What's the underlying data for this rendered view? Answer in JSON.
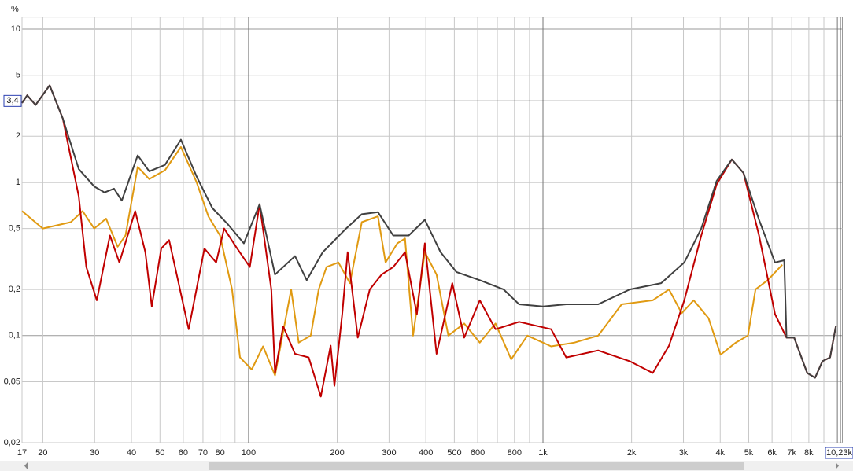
{
  "chart_data": {
    "type": "line",
    "y_label": "%",
    "xscale": "log",
    "yscale": "log",
    "grid": true,
    "xlim": [
      17,
      10400
    ],
    "ylim": [
      0.02,
      12
    ],
    "xticks": [
      17,
      20,
      30,
      40,
      50,
      60,
      70,
      80,
      100,
      200,
      300,
      400,
      500,
      600,
      800,
      {
        "value": 1000,
        "label": "1k"
      },
      {
        "value": 2000,
        "label": "2k"
      },
      {
        "value": 3000,
        "label": "3k"
      },
      {
        "value": 4000,
        "label": "4k"
      },
      {
        "value": 5000,
        "label": "5k"
      },
      {
        "value": 6000,
        "label": "6k"
      },
      {
        "value": 7000,
        "label": "7k"
      },
      {
        "value": 8000,
        "label": "8k"
      },
      {
        "value": 10000,
        "label": "10k"
      }
    ],
    "xminorticks": [
      90,
      700,
      900,
      9000
    ],
    "yticks": [
      {
        "value": 0.02,
        "label": "0,02"
      },
      {
        "value": 0.05,
        "label": "0,05"
      },
      {
        "value": 0.1,
        "label": "0,1"
      },
      {
        "value": 0.2,
        "label": "0,2"
      },
      {
        "value": 0.5,
        "label": "0,5"
      },
      1,
      2,
      5,
      10
    ],
    "cursor": {
      "x": {
        "value": 10230,
        "label": "10,23k"
      },
      "y": {
        "value": 3.4,
        "label": "3,4"
      }
    },
    "series": [
      {
        "color": "#e09a12",
        "x": [
          17,
          20,
          24.9,
          27.3,
          29.9,
          32.8,
          35.9,
          38.2,
          42,
          46,
          52,
          58.9,
          66.6,
          73,
          80,
          87.9,
          93.5,
          102.5,
          112,
          123,
          139.5,
          148,
          162.6,
          173,
          184,
          202,
          221,
          242.5,
          275,
          292,
          320,
          340,
          362,
          397,
          435,
          477,
          540,
          610,
          690,
          780,
          885,
          1066,
          1280,
          1540,
          1850,
          2360,
          2680,
          2960,
          3250,
          3650,
          4010,
          4520,
          4970,
          5270,
          5800,
          6500
        ],
        "values": [
          0.65,
          0.5,
          0.55,
          0.65,
          0.5,
          0.58,
          0.38,
          0.45,
          1.26,
          1.05,
          1.2,
          1.7,
          1.0,
          0.6,
          0.45,
          0.2,
          0.072,
          0.06,
          0.085,
          0.055,
          0.2,
          0.09,
          0.1,
          0.2,
          0.28,
          0.3,
          0.22,
          0.55,
          0.6,
          0.3,
          0.4,
          0.43,
          0.1,
          0.35,
          0.25,
          0.1,
          0.12,
          0.09,
          0.12,
          0.07,
          0.1,
          0.085,
          0.09,
          0.1,
          0.16,
          0.17,
          0.2,
          0.14,
          0.17,
          0.13,
          0.075,
          0.09,
          0.1,
          0.2,
          0.23,
          0.29
        ]
      },
      {
        "color": "#c00000",
        "x": [
          17,
          17.7,
          18.9,
          21.1,
          23.4,
          26.5,
          28.1,
          30.5,
          33.8,
          36.4,
          41.2,
          44.6,
          46.9,
          50.5,
          53.7,
          57,
          62.6,
          70.8,
          77.6,
          82.6,
          90.6,
          101,
          109,
          119.5,
          123,
          131,
          143.8,
          160,
          176,
          190,
          195.7,
          208,
          217,
          235,
          258,
          283,
          310,
          340,
          373,
          397,
          435,
          492,
          540,
          610,
          690,
          830,
          1066,
          1200,
          1540,
          1970,
          2360,
          2680,
          3020,
          3450,
          3890,
          4380,
          4800,
          5420,
          6140,
          6720,
          7130,
          7900,
          8400,
          8900,
          9450,
          9880
        ],
        "values": [
          3.3,
          3.7,
          3.2,
          4.3,
          2.6,
          0.81,
          0.28,
          0.17,
          0.45,
          0.3,
          0.65,
          0.35,
          0.155,
          0.37,
          0.42,
          0.25,
          0.11,
          0.37,
          0.3,
          0.5,
          0.38,
          0.28,
          0.72,
          0.2,
          0.057,
          0.115,
          0.076,
          0.072,
          0.04,
          0.086,
          0.047,
          0.138,
          0.35,
          0.097,
          0.2,
          0.25,
          0.28,
          0.35,
          0.138,
          0.4,
          0.076,
          0.22,
          0.097,
          0.17,
          0.11,
          0.123,
          0.11,
          0.072,
          0.08,
          0.068,
          0.057,
          0.086,
          0.17,
          0.45,
          0.97,
          1.41,
          1.15,
          0.45,
          0.138,
          0.097,
          0.097,
          0.057,
          0.053,
          0.068,
          0.072,
          0.115
        ]
      },
      {
        "color": "#404040",
        "x": [
          17,
          17.7,
          18.9,
          21.1,
          23.4,
          26.5,
          29.9,
          32.4,
          34.9,
          37.1,
          42,
          46,
          52,
          58.9,
          66.6,
          75.3,
          85.2,
          96.4,
          109,
          123,
          143.8,
          157.6,
          178.6,
          214.5,
          242.5,
          275,
          310,
          350,
          397,
          449,
          508,
          610,
          735,
          830,
          1000,
          1200,
          1540,
          1970,
          2520,
          3020,
          3450,
          3890,
          4380,
          4800,
          5420,
          6140,
          6600,
          6720,
          7130,
          7900,
          8400,
          8900,
          9450,
          9880
        ],
        "values": [
          3.3,
          3.7,
          3.2,
          4.3,
          2.6,
          1.22,
          0.94,
          0.86,
          0.91,
          0.76,
          1.5,
          1.18,
          1.3,
          1.9,
          1.09,
          0.68,
          0.53,
          0.4,
          0.72,
          0.25,
          0.33,
          0.23,
          0.35,
          0.5,
          0.62,
          0.64,
          0.45,
          0.45,
          0.57,
          0.35,
          0.26,
          0.23,
          0.2,
          0.16,
          0.155,
          0.16,
          0.16,
          0.2,
          0.22,
          0.3,
          0.5,
          1.02,
          1.41,
          1.15,
          0.57,
          0.3,
          0.31,
          0.097,
          0.097,
          0.057,
          0.053,
          0.068,
          0.072,
          0.115
        ]
      }
    ]
  }
}
